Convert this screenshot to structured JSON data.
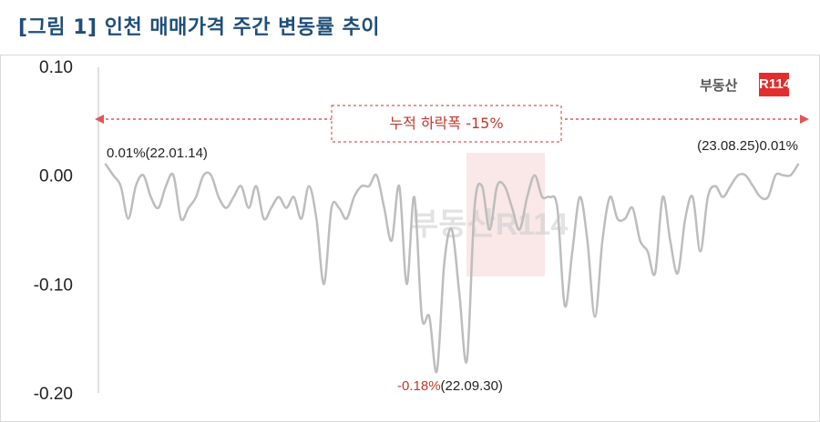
{
  "title": "[그림 1] 인천 매매가격 주간 변동률 추이",
  "logo": {
    "text": "부동산",
    "mark": "R114"
  },
  "watermark": "부동산R114",
  "range_annotation": {
    "text": "누적 하락폭",
    "value": "-15%"
  },
  "annotations": {
    "start": "0.01%(22.01.14)",
    "end": "(23.08.25)0.01%",
    "min_value": "-0.18%",
    "min_date": "(22.09.30)"
  },
  "colors": {
    "line": "#bdbdbd",
    "accent": "#c0392b",
    "title": "#1f4e79",
    "logo": "#e32d2d"
  },
  "chart_data": {
    "type": "line",
    "title": "[그림 1] 인천 매매가격 주간 변동률 추이",
    "xlabel": "",
    "ylabel": "",
    "x_start": "22.01.14",
    "x_end": "23.08.25",
    "ylim": [
      -0.2,
      0.1
    ],
    "yticks": [
      0.1,
      0.0,
      -0.1,
      -0.2
    ],
    "ytick_labels": [
      "0.10",
      "0.00",
      "-0.10",
      "-0.20"
    ],
    "grid": false,
    "series": [
      {
        "values": [
          0.01,
          0.0,
          -0.01,
          -0.04,
          -0.01,
          0.0,
          -0.02,
          -0.03,
          -0.01,
          0.0,
          -0.04,
          -0.03,
          -0.02,
          0.0,
          0.0,
          -0.02,
          -0.03,
          -0.02,
          -0.01,
          -0.03,
          -0.01,
          -0.04,
          -0.03,
          -0.02,
          -0.03,
          -0.02,
          -0.04,
          -0.01,
          -0.04,
          -0.1,
          -0.03,
          -0.03,
          -0.04,
          -0.02,
          -0.01,
          -0.01,
          0.0,
          -0.03,
          -0.06,
          -0.01,
          -0.1,
          -0.02,
          -0.13,
          -0.13,
          -0.18,
          -0.08,
          -0.05,
          -0.11,
          -0.17,
          -0.03,
          -0.01,
          -0.05,
          -0.01,
          -0.01,
          -0.03,
          -0.05,
          -0.02,
          -0.0,
          -0.02,
          -0.02,
          -0.03,
          -0.12,
          -0.07,
          -0.02,
          -0.06,
          -0.13,
          -0.06,
          -0.02,
          -0.04,
          -0.04,
          -0.03,
          -0.06,
          -0.07,
          -0.09,
          -0.02,
          -0.06,
          -0.09,
          -0.04,
          -0.02,
          -0.07,
          -0.02,
          -0.01,
          -0.02,
          -0.01,
          -0.0,
          0.0,
          -0.01,
          -0.02,
          -0.02,
          0.0,
          0.0,
          0.0,
          0.01
        ]
      }
    ]
  }
}
